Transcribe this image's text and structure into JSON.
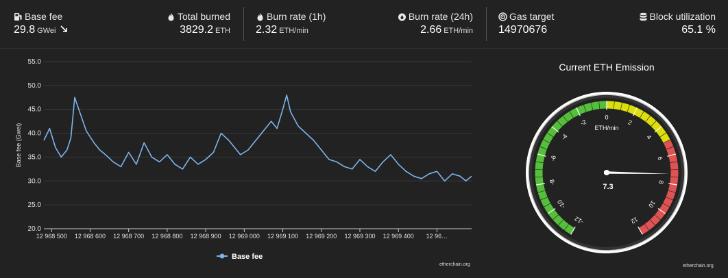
{
  "stats": {
    "base_fee": {
      "label": "Base fee",
      "value": "29.8",
      "unit": "GWei",
      "trend_icon": "arrow-down-right-icon"
    },
    "total_burned": {
      "label": "Total burned",
      "value": "3829.2",
      "unit": "ETH"
    },
    "burn_rate_1h": {
      "label": "Burn rate (1h)",
      "value": "2.32",
      "unit": "ETH/min"
    },
    "burn_rate_24h": {
      "label": "Burn rate (24h)",
      "value": "2.66",
      "unit": "ETH/min"
    },
    "gas_target": {
      "label": "Gas target",
      "value": "14970676"
    },
    "block_utilization": {
      "label": "Block utilization",
      "value": "65.1 %"
    }
  },
  "colors": {
    "background": "#222222",
    "series": "#7cb5ec",
    "grid": "#3a3a3a",
    "gauge_green": "#55bf3b",
    "gauge_yellow": "#dddf0d",
    "gauge_red": "#df5353"
  },
  "chart_data": [
    {
      "type": "line",
      "ylabel": "Base fee (Gwei)",
      "xlabel": "",
      "ylim": [
        20,
        55
      ],
      "yticks": [
        "55.0",
        "50.0",
        "45.0",
        "40.0",
        "35.0",
        "30.0",
        "25.0",
        "20.0"
      ],
      "ytick_values": [
        55,
        50,
        45,
        40,
        35,
        30,
        25,
        20
      ],
      "xlim": [
        12968480,
        12969590
      ],
      "xticks": [
        "12 968 500",
        "12 968 600",
        "12 968 700",
        "12 968 800",
        "12 968 900",
        "12 969 000",
        "12 969 100",
        "12 969 200",
        "12 969 300",
        "12 969 400",
        "12 96…"
      ],
      "xtick_values": [
        12968500,
        12968600,
        12968700,
        12968800,
        12968900,
        12969000,
        12969100,
        12969200,
        12969300,
        12969400,
        12969500
      ],
      "grid": true,
      "legend": "bottom-center",
      "series": [
        {
          "name": "Base fee",
          "color": "#7cb5ec",
          "x": [
            12968480,
            12968495,
            12968510,
            12968525,
            12968540,
            12968550,
            12968560,
            12968575,
            12968590,
            12968610,
            12968625,
            12968640,
            12968660,
            12968680,
            12968700,
            12968720,
            12968740,
            12968760,
            12968780,
            12968800,
            12968820,
            12968840,
            12968860,
            12968880,
            12968900,
            12968920,
            12968940,
            12968960,
            12968975,
            12968990,
            12969010,
            12969030,
            12969050,
            12969070,
            12969085,
            12969100,
            12969110,
            12969120,
            12969140,
            12969160,
            12969180,
            12969200,
            12969220,
            12969240,
            12969260,
            12969280,
            12969300,
            12969320,
            12969340,
            12969360,
            12969380,
            12969400,
            12969420,
            12969440,
            12969460,
            12969480,
            12969500,
            12969520,
            12969540,
            12969560,
            12969575,
            12969590
          ],
          "y": [
            38.5,
            41.0,
            37.0,
            35.0,
            36.5,
            39.0,
            47.5,
            44.0,
            40.5,
            38.0,
            36.5,
            35.5,
            34.0,
            33.0,
            36.0,
            33.5,
            38.0,
            35.0,
            34.0,
            35.5,
            33.5,
            32.5,
            35.0,
            33.5,
            34.5,
            36.0,
            40.0,
            38.5,
            37.0,
            35.5,
            36.5,
            38.5,
            40.5,
            42.5,
            41.0,
            45.0,
            48.0,
            44.5,
            41.5,
            40.0,
            38.5,
            36.5,
            34.5,
            34.0,
            33.0,
            32.5,
            34.5,
            33.0,
            32.0,
            34.0,
            35.5,
            33.5,
            32.0,
            31.0,
            30.5,
            31.5,
            32.0,
            30.0,
            31.5,
            31.0,
            30.0,
            31.0
          ]
        }
      ]
    },
    {
      "type": "gauge",
      "title": "Current ETH Emission",
      "unit": "ETH/min",
      "value": 7.3,
      "value_label": "7.3",
      "min": -12,
      "max": 12,
      "tick_labels": [
        "-12",
        "-10",
        "-8",
        "-6",
        "-4",
        "-2",
        "0",
        "2",
        "4",
        "6",
        "8",
        "10",
        "12"
      ],
      "bands": [
        {
          "from": -12,
          "to": 0,
          "color": "#55bf3b"
        },
        {
          "from": 0,
          "to": 5,
          "color": "#dddf0d"
        },
        {
          "from": 5,
          "to": 12,
          "color": "#df5353"
        }
      ]
    }
  ],
  "credits": {
    "chart": "etherchain.org",
    "gauge": "etherchain.org"
  }
}
